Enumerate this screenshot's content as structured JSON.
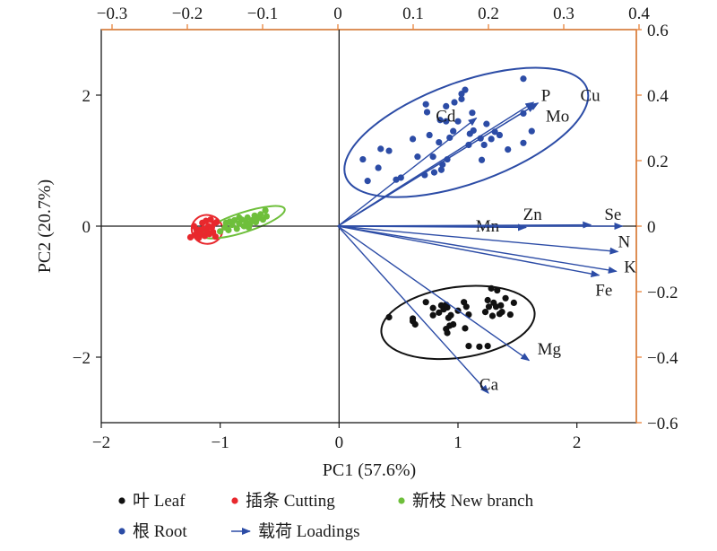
{
  "chart_data": {
    "type": "scatter",
    "subtype": "PCA biplot",
    "xlabel": "PC1 (57.6%)",
    "ylabel": "PC2 (20.7%)",
    "xlim": [
      -2,
      2.5
    ],
    "ylim": [
      -3,
      3
    ],
    "x_ticks": [
      -2,
      -1,
      0,
      1,
      2
    ],
    "x_tick_labels": [
      "−2",
      "−1",
      "0",
      "1",
      "2"
    ],
    "y_ticks": [
      -2,
      0,
      2
    ],
    "y_tick_labels": [
      "−2",
      "0",
      "2"
    ],
    "top_axis": {
      "color": "#e8833a",
      "ticks": [
        -0.3,
        -0.2,
        -0.1,
        0,
        0.1,
        0.2,
        0.3,
        0.4
      ],
      "tick_labels": [
        "−0.3",
        "−0.2",
        "−0.1",
        "0",
        "0.1",
        "0.2",
        "0.3",
        "0.4"
      ]
    },
    "right_axis": {
      "color": "#e8833a",
      "ticks": [
        0.6,
        0.4,
        0.2,
        0,
        -0.2,
        -0.4,
        -0.6
      ],
      "tick_labels": [
        "0.6",
        "0.4",
        "0.2",
        "0",
        "−0.2",
        "−0.4",
        "−0.6"
      ]
    },
    "grid": false,
    "legend_position": "bottom",
    "series": [
      {
        "name": "叶 Leaf",
        "color": "#111111",
        "points": [
          [
            0.42,
            -1.39
          ],
          [
            0.62,
            -1.41
          ],
          [
            0.62,
            -1.45
          ],
          [
            0.64,
            -1.5
          ],
          [
            0.73,
            -1.16
          ],
          [
            0.79,
            -1.25
          ],
          [
            0.79,
            -1.36
          ],
          [
            0.84,
            -1.32
          ],
          [
            0.86,
            -1.21
          ],
          [
            0.88,
            -1.26
          ],
          [
            0.88,
            -1.27
          ],
          [
            0.9,
            -1.57
          ],
          [
            0.9,
            -1.2
          ],
          [
            0.91,
            -1.24
          ],
          [
            0.91,
            -1.63
          ],
          [
            0.92,
            -1.4
          ],
          [
            0.93,
            -1.52
          ],
          [
            0.94,
            -1.36
          ],
          [
            0.96,
            -1.5
          ],
          [
            1.0,
            -1.29
          ],
          [
            1.05,
            -1.16
          ],
          [
            1.06,
            -1.56
          ],
          [
            1.07,
            -1.23
          ],
          [
            1.09,
            -1.35
          ],
          [
            1.09,
            -1.83
          ],
          [
            1.18,
            -1.84
          ],
          [
            1.23,
            -1.31
          ],
          [
            1.25,
            -1.83
          ],
          [
            1.25,
            -1.13
          ],
          [
            1.26,
            -1.23
          ],
          [
            1.28,
            -0.95
          ],
          [
            1.29,
            -1.37
          ],
          [
            1.3,
            -1.17
          ],
          [
            1.32,
            -1.23
          ],
          [
            1.33,
            -0.98
          ],
          [
            1.35,
            -1.34
          ],
          [
            1.36,
            -1.21
          ],
          [
            1.37,
            -1.31
          ],
          [
            1.4,
            -1.1
          ],
          [
            1.44,
            -1.35
          ],
          [
            1.47,
            -1.17
          ]
        ]
      },
      {
        "name": "插条 Cutting",
        "color": "#e8282d",
        "points": [
          [
            -1.25,
            -0.17
          ],
          [
            -1.22,
            0.0
          ],
          [
            -1.21,
            -0.13
          ],
          [
            -1.2,
            -0.05
          ],
          [
            -1.19,
            -0.1
          ],
          [
            -1.18,
            -0.18
          ],
          [
            -1.17,
            -0.06
          ],
          [
            -1.16,
            -0.12
          ],
          [
            -1.15,
            0.05
          ],
          [
            -1.14,
            -0.04
          ],
          [
            -1.13,
            -0.15
          ],
          [
            -1.12,
            0.08
          ],
          [
            -1.11,
            -0.08
          ],
          [
            -1.1,
            0.0
          ],
          [
            -1.09,
            -0.12
          ],
          [
            -1.08,
            0.1
          ],
          [
            -1.07,
            -0.02
          ],
          [
            -1.06,
            -0.09
          ],
          [
            -1.05,
            0.04
          ],
          [
            -1.04,
            -0.16
          ],
          [
            -1.03,
            0.06
          ]
        ]
      },
      {
        "name": "新枝 New branch",
        "color": "#6ebf3b",
        "points": [
          [
            -1.0,
            -0.08
          ],
          [
            -0.96,
            -0.02
          ],
          [
            -0.95,
            0.05
          ],
          [
            -0.93,
            -0.06
          ],
          [
            -0.9,
            0.02
          ],
          [
            -0.88,
            0.09
          ],
          [
            -0.86,
            -0.04
          ],
          [
            -0.84,
            0.04
          ],
          [
            -0.82,
            0.1
          ],
          [
            -0.8,
            0.0
          ],
          [
            -0.78,
            0.06
          ],
          [
            -0.77,
            0.13
          ],
          [
            -0.75,
            0.03
          ],
          [
            -0.73,
            0.09
          ],
          [
            -0.71,
            0.16
          ],
          [
            -0.7,
            0.06
          ],
          [
            -0.68,
            0.12
          ],
          [
            -0.66,
            0.18
          ],
          [
            -0.64,
            0.1
          ],
          [
            -0.62,
            0.24
          ],
          [
            -0.61,
            0.15
          ],
          [
            -0.76,
            -0.02
          ],
          [
            -0.84,
            0.13
          ],
          [
            -0.92,
            0.07
          ]
        ]
      },
      {
        "name": "根 Root",
        "color": "#2c4ca6",
        "points": [
          [
            0.2,
            1.02
          ],
          [
            0.24,
            0.69
          ],
          [
            0.33,
            0.89
          ],
          [
            0.35,
            1.18
          ],
          [
            0.42,
            1.15
          ],
          [
            0.48,
            0.71
          ],
          [
            0.52,
            0.74
          ],
          [
            0.62,
            1.33
          ],
          [
            0.66,
            1.06
          ],
          [
            0.72,
            0.78
          ],
          [
            0.73,
            1.86
          ],
          [
            0.74,
            1.74
          ],
          [
            0.76,
            1.39
          ],
          [
            0.79,
            1.06
          ],
          [
            0.8,
            0.82
          ],
          [
            0.84,
            1.28
          ],
          [
            0.85,
            1.62
          ],
          [
            0.86,
            0.86
          ],
          [
            0.87,
            0.94
          ],
          [
            0.9,
            1.6
          ],
          [
            0.9,
            1.83
          ],
          [
            0.91,
            1.02
          ],
          [
            0.93,
            1.35
          ],
          [
            0.96,
            1.45
          ],
          [
            0.97,
            1.89
          ],
          [
            1.0,
            1.6
          ],
          [
            1.03,
            2.02
          ],
          [
            1.03,
            1.94
          ],
          [
            1.06,
            2.08
          ],
          [
            1.09,
            1.24
          ],
          [
            1.1,
            1.41
          ],
          [
            1.12,
            1.73
          ],
          [
            1.13,
            1.46
          ],
          [
            1.19,
            1.34
          ],
          [
            1.22,
            1.24
          ],
          [
            1.2,
            1.01
          ],
          [
            1.24,
            1.56
          ],
          [
            1.28,
            1.33
          ],
          [
            1.31,
            1.44
          ],
          [
            1.35,
            1.39
          ],
          [
            1.42,
            1.17
          ],
          [
            1.55,
            2.25
          ],
          [
            1.55,
            1.72
          ],
          [
            1.55,
            1.27
          ],
          [
            1.62,
            1.45
          ]
        ]
      }
    ],
    "ellipses": [
      {
        "group": "叶 Leaf",
        "center": [
          1.0,
          -1.47
        ],
        "rx": 0.65,
        "ry": 0.54,
        "color": "#111111"
      },
      {
        "group": "插条 Cutting",
        "center": [
          -1.11,
          -0.05
        ],
        "rx": 0.13,
        "ry": 0.22,
        "color": "#e8282d"
      },
      {
        "group": "新枝 New branch",
        "center": [
          -0.8,
          0.06
        ],
        "rx": 0.36,
        "ry": 0.15,
        "color": "#6ebf3b"
      },
      {
        "group": "根 Root",
        "center": [
          1.07,
          1.43
        ],
        "rx": 1.08,
        "ry": 0.77,
        "color": "#2c4ca6"
      }
    ],
    "loadings": {
      "name": "载荷 Loadings",
      "color": "#2c4ca6",
      "vectors": [
        {
          "label": "P",
          "x": 0.26,
          "y": 0.378,
          "label_x": 0.27,
          "label_y": 0.398
        },
        {
          "label": "Cu",
          "x": 0.266,
          "y": 0.376,
          "label_x": 0.322,
          "label_y": 0.398
        },
        {
          "label": "Mo",
          "x": 0.262,
          "y": 0.37,
          "label_x": 0.276,
          "label_y": 0.335
        },
        {
          "label": "Cd",
          "x": 0.184,
          "y": 0.33,
          "label_x": 0.13,
          "label_y": 0.335
        },
        {
          "label": "Mn",
          "x": 0.25,
          "y": -0.004,
          "label_x": 0.183,
          "label_y": 0.0
        },
        {
          "label": "Zn",
          "x": 0.336,
          "y": 0.004,
          "label_x": 0.246,
          "label_y": 0.036
        },
        {
          "label": "Se",
          "x": 0.378,
          "y": 0.0,
          "label_x": 0.354,
          "label_y": 0.036
        },
        {
          "label": "N",
          "x": 0.372,
          "y": -0.078,
          "label_x": 0.372,
          "label_y": -0.048
        },
        {
          "label": "K",
          "x": 0.37,
          "y": -0.138,
          "label_x": 0.38,
          "label_y": -0.125
        },
        {
          "label": "Fe",
          "x": 0.347,
          "y": -0.15,
          "label_x": 0.342,
          "label_y": -0.196
        },
        {
          "label": "Mg",
          "x": 0.254,
          "y": -0.41,
          "label_x": 0.265,
          "label_y": -0.375
        },
        {
          "label": "Ca",
          "x": 0.2,
          "y": -0.51,
          "label_x": 0.188,
          "label_y": -0.484
        }
      ]
    },
    "legend": [
      {
        "label": "叶 Leaf",
        "marker": "dot",
        "color": "#111111"
      },
      {
        "label": "插条 Cutting",
        "marker": "dot",
        "color": "#e8282d"
      },
      {
        "label": "新枝 New branch",
        "marker": "dot",
        "color": "#6ebf3b"
      },
      {
        "label": "根 Root",
        "marker": "dot",
        "color": "#2c4ca6"
      },
      {
        "label": "载荷 Loadings",
        "marker": "arrow",
        "color": "#2c4ca6"
      }
    ]
  }
}
